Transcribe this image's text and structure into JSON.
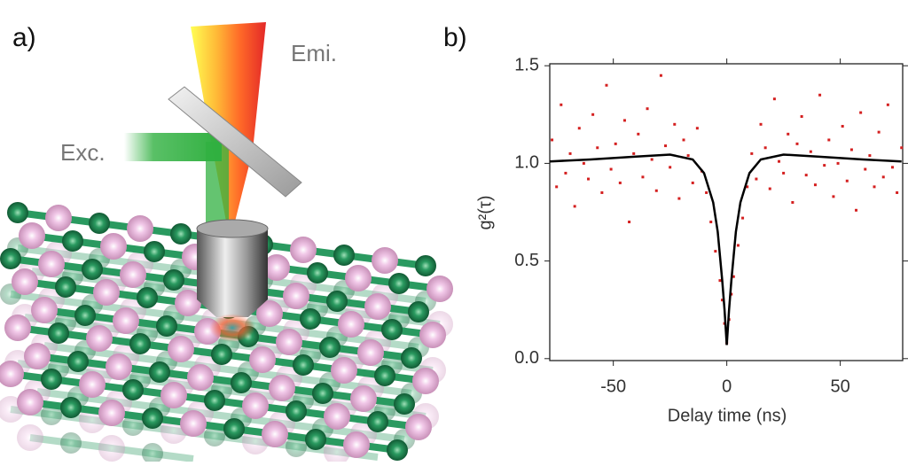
{
  "panel_a": {
    "label": "a)",
    "emission_label": "Emi.",
    "excitation_label": "Exc."
  },
  "chart_data": {
    "type": "scatter",
    "panel_label": "b)",
    "xlabel": "Delay time (ns)",
    "ylabel": "g²(τ)",
    "xlim": [
      -78,
      77.5
    ],
    "ylim": [
      -0.01,
      1.51
    ],
    "xticks": [
      -50,
      0,
      50
    ],
    "yticks": [
      {
        "value": 0,
        "label": "0.0"
      },
      0.5,
      {
        "value": 1,
        "label": "1.0"
      },
      1.5
    ],
    "points": {
      "color": "#d42020",
      "x": [
        -77,
        -75,
        -73,
        -71,
        -69,
        -67,
        -65,
        -63,
        -61,
        -59,
        -57,
        -55,
        -53,
        -51,
        -49,
        -47,
        -45,
        -43,
        -41,
        -39,
        -37,
        -35,
        -33,
        -31,
        -29,
        -27,
        -25,
        -23,
        -21,
        -19,
        -17,
        -15,
        -13,
        -11,
        -9,
        -7,
        -5,
        -3,
        -2,
        -1,
        0,
        1,
        2,
        3,
        5,
        7,
        9,
        11,
        13,
        15,
        17,
        19,
        21,
        23,
        25,
        27,
        29,
        31,
        33,
        35,
        37,
        39,
        41,
        43,
        45,
        47,
        49,
        51,
        53,
        55,
        57,
        59,
        61,
        63,
        65,
        67,
        69,
        71,
        73,
        75,
        77
      ],
      "values": [
        1.12,
        0.88,
        1.3,
        0.95,
        1.05,
        0.78,
        1.18,
        1.0,
        0.92,
        1.25,
        1.08,
        0.85,
        1.4,
        0.97,
        1.1,
        0.9,
        1.22,
        0.7,
        1.05,
        1.15,
        0.93,
        1.28,
        1.02,
        0.86,
        1.45,
        1.09,
        0.98,
        1.2,
        0.82,
        1.12,
        1.04,
        0.9,
        1.18,
        0.96,
        0.85,
        0.7,
        0.55,
        0.4,
        0.3,
        0.18,
        0.08,
        0.2,
        0.33,
        0.42,
        0.58,
        0.72,
        0.88,
        1.05,
        0.92,
        1.2,
        1.08,
        0.87,
        1.33,
        1.01,
        0.95,
        1.15,
        0.8,
        1.1,
        1.24,
        0.94,
        1.06,
        0.89,
        1.35,
        0.99,
        1.12,
        0.83,
        1.0,
        1.19,
        0.91,
        1.07,
        0.76,
        1.26,
        0.97,
        1.04,
        0.88,
        1.16,
        0.93,
        1.3,
        0.98,
        0.85,
        1.08
      ]
    },
    "fit": {
      "color": "#000000",
      "x": [
        -78,
        -60,
        -40,
        -25,
        -15,
        -10,
        -6,
        -4,
        -2,
        -1,
        0,
        1,
        2,
        4,
        6,
        10,
        15,
        25,
        40,
        60,
        77
      ],
      "values": [
        1.01,
        1.02,
        1.035,
        1.045,
        1.02,
        0.95,
        0.8,
        0.65,
        0.4,
        0.25,
        0.07,
        0.25,
        0.4,
        0.65,
        0.8,
        0.95,
        1.02,
        1.045,
        1.035,
        1.02,
        1.01
      ]
    }
  }
}
